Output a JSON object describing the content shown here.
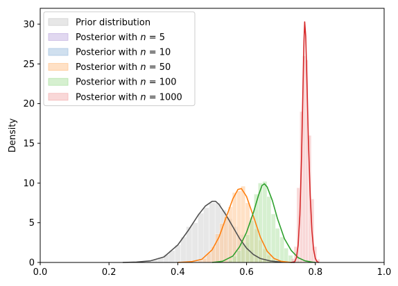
{
  "chart_data": {
    "type": "area",
    "title": "",
    "xlabel": "",
    "ylabel": "Density",
    "xlim": [
      0.0,
      1.0
    ],
    "ylim": [
      0,
      32
    ],
    "xticks": [
      "0.0",
      "0.2",
      "0.4",
      "0.6",
      "0.8",
      "1.0"
    ],
    "xtick_values": [
      0.0,
      0.2,
      0.4,
      0.6,
      0.8,
      1.0
    ],
    "yticks": [
      "0",
      "5",
      "10",
      "15",
      "20",
      "25",
      "30"
    ],
    "ytick_values": [
      0,
      5,
      10,
      15,
      20,
      25,
      30
    ],
    "grid": false,
    "legend_position": "upper-left",
    "series": [
      {
        "name": "Prior distribution",
        "fill_color": "#d3d3d3",
        "line_color": "#505050",
        "bin_width": 0.0167,
        "bins": [
          [
            0.283,
            0.05
          ],
          [
            0.3,
            0.1
          ],
          [
            0.317,
            0.15
          ],
          [
            0.333,
            0.35
          ],
          [
            0.35,
            0.6
          ],
          [
            0.367,
            1.0
          ],
          [
            0.383,
            1.5
          ],
          [
            0.4,
            2.2
          ],
          [
            0.417,
            3.2
          ],
          [
            0.433,
            4.5
          ],
          [
            0.45,
            5.0
          ],
          [
            0.467,
            6.2
          ],
          [
            0.483,
            6.9
          ],
          [
            0.5,
            7.5
          ],
          [
            0.517,
            7.5
          ],
          [
            0.533,
            6.6
          ],
          [
            0.55,
            5.5
          ],
          [
            0.567,
            4.5
          ],
          [
            0.583,
            3.5
          ],
          [
            0.6,
            2.5
          ],
          [
            0.617,
            1.6
          ],
          [
            0.633,
            0.9
          ],
          [
            0.65,
            0.5
          ],
          [
            0.667,
            0.25
          ],
          [
            0.683,
            0.1
          ]
        ],
        "curve": [
          [
            0.24,
            0.0
          ],
          [
            0.28,
            0.05
          ],
          [
            0.32,
            0.2
          ],
          [
            0.36,
            0.7
          ],
          [
            0.4,
            2.2
          ],
          [
            0.43,
            4.0
          ],
          [
            0.46,
            6.0
          ],
          [
            0.48,
            7.1
          ],
          [
            0.5,
            7.7
          ],
          [
            0.51,
            7.7
          ],
          [
            0.52,
            7.3
          ],
          [
            0.54,
            6.0
          ],
          [
            0.56,
            4.5
          ],
          [
            0.58,
            3.0
          ],
          [
            0.6,
            1.8
          ],
          [
            0.62,
            1.0
          ],
          [
            0.64,
            0.5
          ],
          [
            0.67,
            0.18
          ],
          [
            0.7,
            0.05
          ],
          [
            0.74,
            0.0
          ]
        ]
      },
      {
        "name": "Posterior with n = 5",
        "fill_color": "#c9b8e3",
        "line_color": "#7b5bb0",
        "bin_width": 0.0167,
        "bins": [],
        "curve": []
      },
      {
        "name": "Posterior with n = 10",
        "fill_color": "#aac7e1",
        "line_color": "#1f77b4",
        "bin_width": 0.0167,
        "bins": [],
        "curve": []
      },
      {
        "name": "Posterior with n = 50",
        "fill_color": "#ffc998",
        "line_color": "#ff7f0e",
        "bin_width": 0.0125,
        "bins": [
          [
            0.465,
            0.2
          ],
          [
            0.478,
            0.5
          ],
          [
            0.49,
            1.2
          ],
          [
            0.503,
            2.0
          ],
          [
            0.515,
            3.6
          ],
          [
            0.528,
            4.9
          ],
          [
            0.54,
            5.8
          ],
          [
            0.553,
            7.0
          ],
          [
            0.565,
            8.8
          ],
          [
            0.578,
            9.0
          ],
          [
            0.59,
            9.6
          ],
          [
            0.603,
            7.5
          ],
          [
            0.615,
            5.7
          ],
          [
            0.628,
            4.2
          ],
          [
            0.64,
            2.8
          ],
          [
            0.653,
            1.7
          ],
          [
            0.665,
            0.9
          ],
          [
            0.678,
            0.4
          ]
        ],
        "curve": [
          [
            0.4,
            0.0
          ],
          [
            0.44,
            0.1
          ],
          [
            0.47,
            0.4
          ],
          [
            0.5,
            1.6
          ],
          [
            0.52,
            3.2
          ],
          [
            0.54,
            5.6
          ],
          [
            0.56,
            8.0
          ],
          [
            0.575,
            9.2
          ],
          [
            0.585,
            9.3
          ],
          [
            0.6,
            8.3
          ],
          [
            0.62,
            5.8
          ],
          [
            0.64,
            3.2
          ],
          [
            0.66,
            1.4
          ],
          [
            0.68,
            0.5
          ],
          [
            0.7,
            0.15
          ],
          [
            0.73,
            0.0
          ]
        ]
      },
      {
        "name": "Posterior with n = 100",
        "fill_color": "#b5e3a9",
        "line_color": "#2ca02c",
        "bin_width": 0.0125,
        "bins": [
          [
            0.553,
            0.3
          ],
          [
            0.565,
            0.8
          ],
          [
            0.578,
            1.5
          ],
          [
            0.59,
            2.4
          ],
          [
            0.603,
            3.5
          ],
          [
            0.615,
            5.3
          ],
          [
            0.628,
            8.6
          ],
          [
            0.64,
            10.0
          ],
          [
            0.653,
            10.2
          ],
          [
            0.665,
            8.3
          ],
          [
            0.678,
            6.1
          ],
          [
            0.69,
            4.3
          ],
          [
            0.703,
            3.2
          ],
          [
            0.715,
            1.8
          ],
          [
            0.728,
            0.9
          ],
          [
            0.74,
            0.4
          ],
          [
            0.753,
            0.2
          ]
        ],
        "curve": [
          [
            0.5,
            0.0
          ],
          [
            0.53,
            0.15
          ],
          [
            0.56,
            0.8
          ],
          [
            0.58,
            2.0
          ],
          [
            0.6,
            3.8
          ],
          [
            0.62,
            6.3
          ],
          [
            0.635,
            8.5
          ],
          [
            0.645,
            9.7
          ],
          [
            0.652,
            9.9
          ],
          [
            0.66,
            9.5
          ],
          [
            0.675,
            7.8
          ],
          [
            0.69,
            5.5
          ],
          [
            0.71,
            3.0
          ],
          [
            0.73,
            1.5
          ],
          [
            0.75,
            0.6
          ],
          [
            0.77,
            0.2
          ],
          [
            0.79,
            0.05
          ],
          [
            0.8,
            0.0
          ]
        ]
      },
      {
        "name": "Posterior with n = 1000",
        "fill_color": "#f4b8b8",
        "line_color": "#d62728",
        "bin_width": 0.00833,
        "bins": [
          [
            0.734,
            0.5
          ],
          [
            0.742,
            2.0
          ],
          [
            0.75,
            9.4
          ],
          [
            0.759,
            19.0
          ],
          [
            0.767,
            26.0
          ],
          [
            0.775,
            25.5
          ],
          [
            0.784,
            16.0
          ],
          [
            0.792,
            8.0
          ],
          [
            0.8,
            2.0
          ],
          [
            0.809,
            0.4
          ]
        ],
        "curve": [
          [
            0.73,
            0.0
          ],
          [
            0.74,
            0.1
          ],
          [
            0.745,
            0.6
          ],
          [
            0.75,
            2.2
          ],
          [
            0.755,
            6.0
          ],
          [
            0.76,
            13.5
          ],
          [
            0.764,
            22.0
          ],
          [
            0.767,
            28.0
          ],
          [
            0.769,
            30.3
          ],
          [
            0.772,
            28.5
          ],
          [
            0.776,
            22.0
          ],
          [
            0.78,
            15.0
          ],
          [
            0.785,
            8.5
          ],
          [
            0.79,
            4.0
          ],
          [
            0.795,
            1.6
          ],
          [
            0.8,
            0.5
          ],
          [
            0.805,
            0.1
          ],
          [
            0.81,
            0.0
          ]
        ]
      }
    ],
    "legend": {
      "items": [
        {
          "prefix": "Prior distribution",
          "n": ""
        },
        {
          "prefix": "Posterior with ",
          "n": "5"
        },
        {
          "prefix": "Posterior with ",
          "n": "10"
        },
        {
          "prefix": "Posterior with ",
          "n": "50"
        },
        {
          "prefix": "Posterior with ",
          "n": "100"
        },
        {
          "prefix": "Posterior with ",
          "n": "1000"
        }
      ],
      "n_symbol": "n",
      "eq": " = "
    }
  }
}
